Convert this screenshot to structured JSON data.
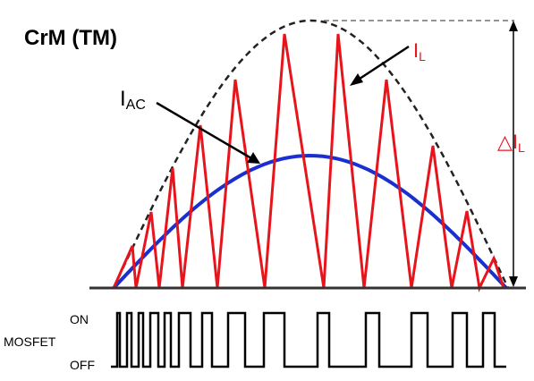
{
  "diagram": {
    "title": "CrM (TM)",
    "labels": {
      "iac_main": "I",
      "iac_sub": "AC",
      "il_main": "I",
      "il_sub": "L",
      "delta_symbol": "△",
      "delta_main": "I",
      "delta_sub": "L"
    },
    "mosfet": {
      "name": "MOSFET",
      "on_label": "ON",
      "off_label": "OFF"
    },
    "colors": {
      "inductor_current": "#e8141c",
      "ac_current": "#1a2fd0",
      "peak_envelope": "#222222",
      "axis": "#333333",
      "text": "#000000",
      "annotation_red": "#e8141c"
    }
  }
}
